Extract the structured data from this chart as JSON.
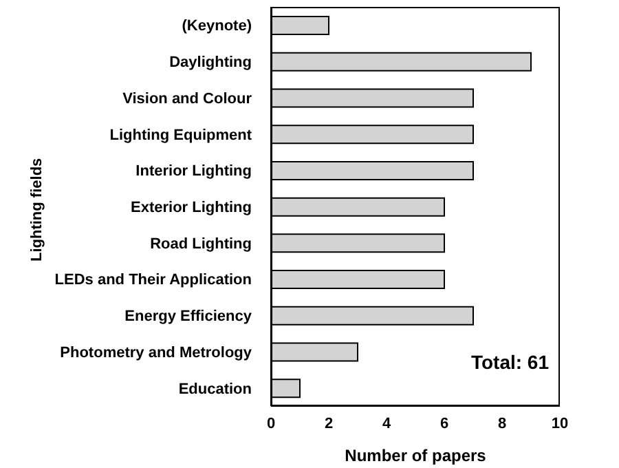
{
  "chart_data": {
    "type": "bar",
    "orientation": "horizontal",
    "categories": [
      "(Keynote)",
      "Daylighting",
      "Vision and Colour",
      "Lighting Equipment",
      "Interior Lighting",
      "Exterior Lighting",
      "Road Lighting",
      "LEDs and Their Application",
      "Energy Efficiency",
      "Photometry and Metrology",
      "Education"
    ],
    "values": [
      2,
      9,
      7,
      7,
      7,
      6,
      6,
      6,
      7,
      3,
      1
    ],
    "color": "#d3d3d3",
    "xlim": [
      0,
      10
    ],
    "xticks": [
      0,
      2,
      4,
      6,
      8,
      10
    ],
    "xlabel": "Number of papers",
    "ylabel": "Lighting fields",
    "annotations": [
      "Total: 61"
    ]
  }
}
